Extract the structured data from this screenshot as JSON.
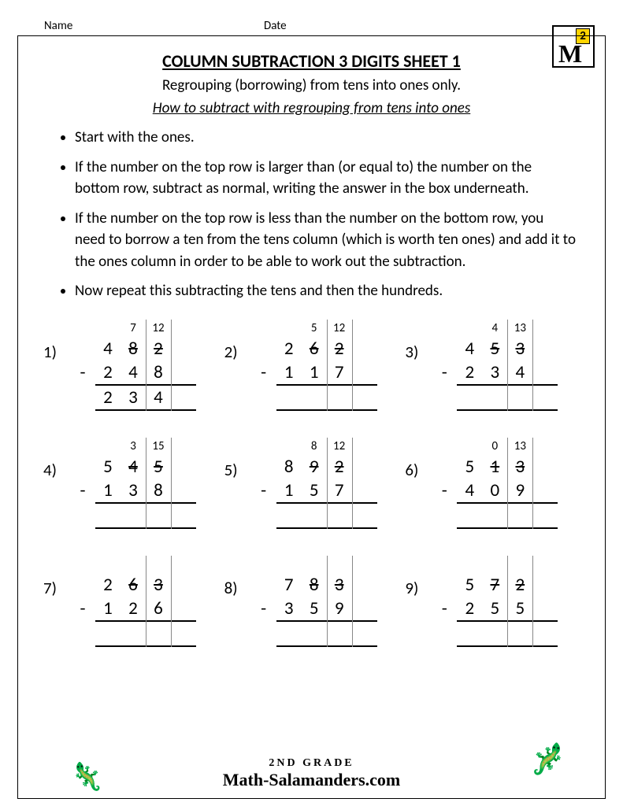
{
  "header": {
    "name_label": "Name",
    "date_label": "Date"
  },
  "logo": {
    "digit": "2",
    "glyph": "M"
  },
  "title": "COLUMN SUBTRACTION 3 DIGITS SHEET 1",
  "subtitle": "Regrouping (borrowing) from tens into ones only.",
  "howto": "How to subtract with regrouping from tens into ones",
  "instructions": [
    "Start with the ones.",
    "If the number on the top row is larger than (or equal to) the number on the bottom row, subtract as normal, writing the answer in the box underneath.",
    "If the number on the top row is less than the number on the bottom row, you need to borrow a ten from the tens column (which is worth ten ones) and add it to the ones column in order to be able to work out the subtraction.",
    "Now repeat this subtracting the tens and then the hundreds."
  ],
  "problems": [
    {
      "n": "1)",
      "carry": [
        "",
        "",
        "7",
        "12"
      ],
      "top": [
        "",
        "4",
        "8",
        "2"
      ],
      "top_strike": [
        false,
        false,
        true,
        true
      ],
      "bot": [
        "-",
        "2",
        "4",
        "8"
      ],
      "ans": [
        "",
        "2",
        "3",
        "4"
      ]
    },
    {
      "n": "2)",
      "carry": [
        "",
        "",
        "5",
        "12"
      ],
      "top": [
        "",
        "2",
        "6",
        "2"
      ],
      "top_strike": [
        false,
        false,
        true,
        true
      ],
      "bot": [
        "-",
        "1",
        "1",
        "7"
      ],
      "ans": [
        "",
        "",
        "",
        ""
      ]
    },
    {
      "n": "3)",
      "carry": [
        "",
        "",
        "4",
        "13"
      ],
      "top": [
        "",
        "4",
        "5",
        "3"
      ],
      "top_strike": [
        false,
        false,
        true,
        true
      ],
      "bot": [
        "-",
        "2",
        "3",
        "4"
      ],
      "ans": [
        "",
        "",
        "",
        ""
      ]
    },
    {
      "n": "4)",
      "carry": [
        "",
        "",
        "3",
        "15"
      ],
      "top": [
        "",
        "5",
        "4",
        "5"
      ],
      "top_strike": [
        false,
        false,
        true,
        true
      ],
      "bot": [
        "-",
        "1",
        "3",
        "8"
      ],
      "ans": [
        "",
        "",
        "",
        ""
      ]
    },
    {
      "n": "5)",
      "carry": [
        "",
        "",
        "8",
        "12"
      ],
      "top": [
        "",
        "8",
        "9",
        "2"
      ],
      "top_strike": [
        false,
        false,
        true,
        true
      ],
      "bot": [
        "-",
        "1",
        "5",
        "7"
      ],
      "ans": [
        "",
        "",
        "",
        ""
      ]
    },
    {
      "n": "6)",
      "carry": [
        "",
        "",
        "0",
        "13"
      ],
      "top": [
        "",
        "5",
        "1",
        "3"
      ],
      "top_strike": [
        false,
        false,
        true,
        true
      ],
      "bot": [
        "-",
        "4",
        "0",
        "9"
      ],
      "ans": [
        "",
        "",
        "",
        ""
      ]
    },
    {
      "n": "7)",
      "carry": [
        "",
        "",
        "",
        ""
      ],
      "top": [
        "",
        "2",
        "6",
        "3"
      ],
      "top_strike": [
        false,
        false,
        true,
        true
      ],
      "bot": [
        "-",
        "1",
        "2",
        "6"
      ],
      "ans": [
        "",
        "",
        "",
        ""
      ]
    },
    {
      "n": "8)",
      "carry": [
        "",
        "",
        "",
        ""
      ],
      "top": [
        "",
        "7",
        "8",
        "3"
      ],
      "top_strike": [
        false,
        false,
        true,
        true
      ],
      "bot": [
        "-",
        "3",
        "5",
        "9"
      ],
      "ans": [
        "",
        "",
        "",
        ""
      ]
    },
    {
      "n": "9)",
      "carry": [
        "",
        "",
        "",
        ""
      ],
      "top": [
        "",
        "5",
        "7",
        "2"
      ],
      "top_strike": [
        false,
        false,
        true,
        true
      ],
      "bot": [
        "-",
        "2",
        "5",
        "5"
      ],
      "ans": [
        "",
        "",
        "",
        ""
      ]
    }
  ],
  "vline_color": "#888888",
  "footer": {
    "grade": "2ND GRADE",
    "brand": "Math-Salamanders.com"
  },
  "salamander_left": "🦎",
  "salamander_right": "🦎"
}
